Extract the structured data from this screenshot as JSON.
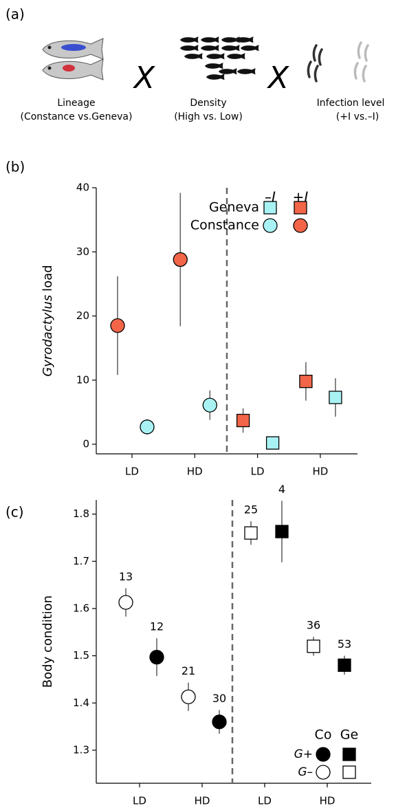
{
  "figure_label": "(a)",
  "panel_a": {
    "factors": [
      {
        "title": "Lineage",
        "subtitle": "(Constance vs.Geneva)"
      },
      {
        "title": "Density",
        "subtitle": "(High vs. Low)"
      },
      {
        "title": "Infection level",
        "subtitle": "(+I vs.–I)"
      }
    ],
    "operators": [
      "X",
      "X"
    ]
  },
  "chart_data": [
    {
      "type": "dot",
      "label": "(b)",
      "ylabel": [
        "Gyrodactylus",
        "load"
      ],
      "categories": [
        "LD",
        "HD"
      ],
      "ylim": [
        -1.5,
        40
      ],
      "yticks": [
        0,
        10,
        20,
        30,
        40
      ],
      "divider": "dashed",
      "groups": [
        {
          "name": "Constance",
          "marker": "circle",
          "series": [
            {
              "name": "–I",
              "color": "#a9f2f4",
              "values": [
                2.7,
                6.1
              ],
              "errors": [
                1.2,
                2.3
              ]
            },
            {
              "name": "+I",
              "color": "#f26549",
              "values": [
                18.5,
                28.8
              ],
              "errors": [
                7.7,
                10.4
              ]
            }
          ]
        },
        {
          "name": "Geneva",
          "marker": "square",
          "series": [
            {
              "name": "–I",
              "color": "#a9f2f4",
              "values": [
                0.2,
                7.3
              ],
              "errors": [
                0.3,
                3.0
              ]
            },
            {
              "name": "+I",
              "color": "#f26549",
              "values": [
                3.7,
                9.8
              ],
              "errors": [
                1.9,
                3.0
              ]
            }
          ]
        }
      ]
    },
    {
      "type": "dot",
      "label": "(c)",
      "ylabel": [
        "Body condition"
      ],
      "categories": [
        "LD",
        "HD"
      ],
      "ylim": [
        1.23,
        1.83
      ],
      "yticks": [
        1.3,
        1.4,
        1.5,
        1.6,
        1.7,
        1.8
      ],
      "divider": "dashed",
      "groups": [
        {
          "name": "Co",
          "marker": "circle",
          "series": [
            {
              "name": "G+",
              "color": "#000000",
              "values": [
                1.497,
                1.36
              ],
              "errors": [
                0.04,
                0.025
              ],
              "n": [
                12,
                30
              ]
            },
            {
              "name": "G–",
              "color": "#ffffff",
              "values": [
                1.613,
                1.413
              ],
              "errors": [
                0.03,
                0.03
              ],
              "n": [
                13,
                21
              ]
            }
          ]
        },
        {
          "name": "Ge",
          "marker": "square",
          "series": [
            {
              "name": "G+",
              "color": "#000000",
              "values": [
                1.763,
                1.48
              ],
              "errors": [
                0.065,
                0.02
              ],
              "n": [
                4,
                53
              ]
            },
            {
              "name": "G–",
              "color": "#ffffff",
              "values": [
                1.76,
                1.52
              ],
              "errors": [
                0.025,
                0.02
              ],
              "n": [
                25,
                36
              ]
            }
          ]
        }
      ]
    }
  ]
}
